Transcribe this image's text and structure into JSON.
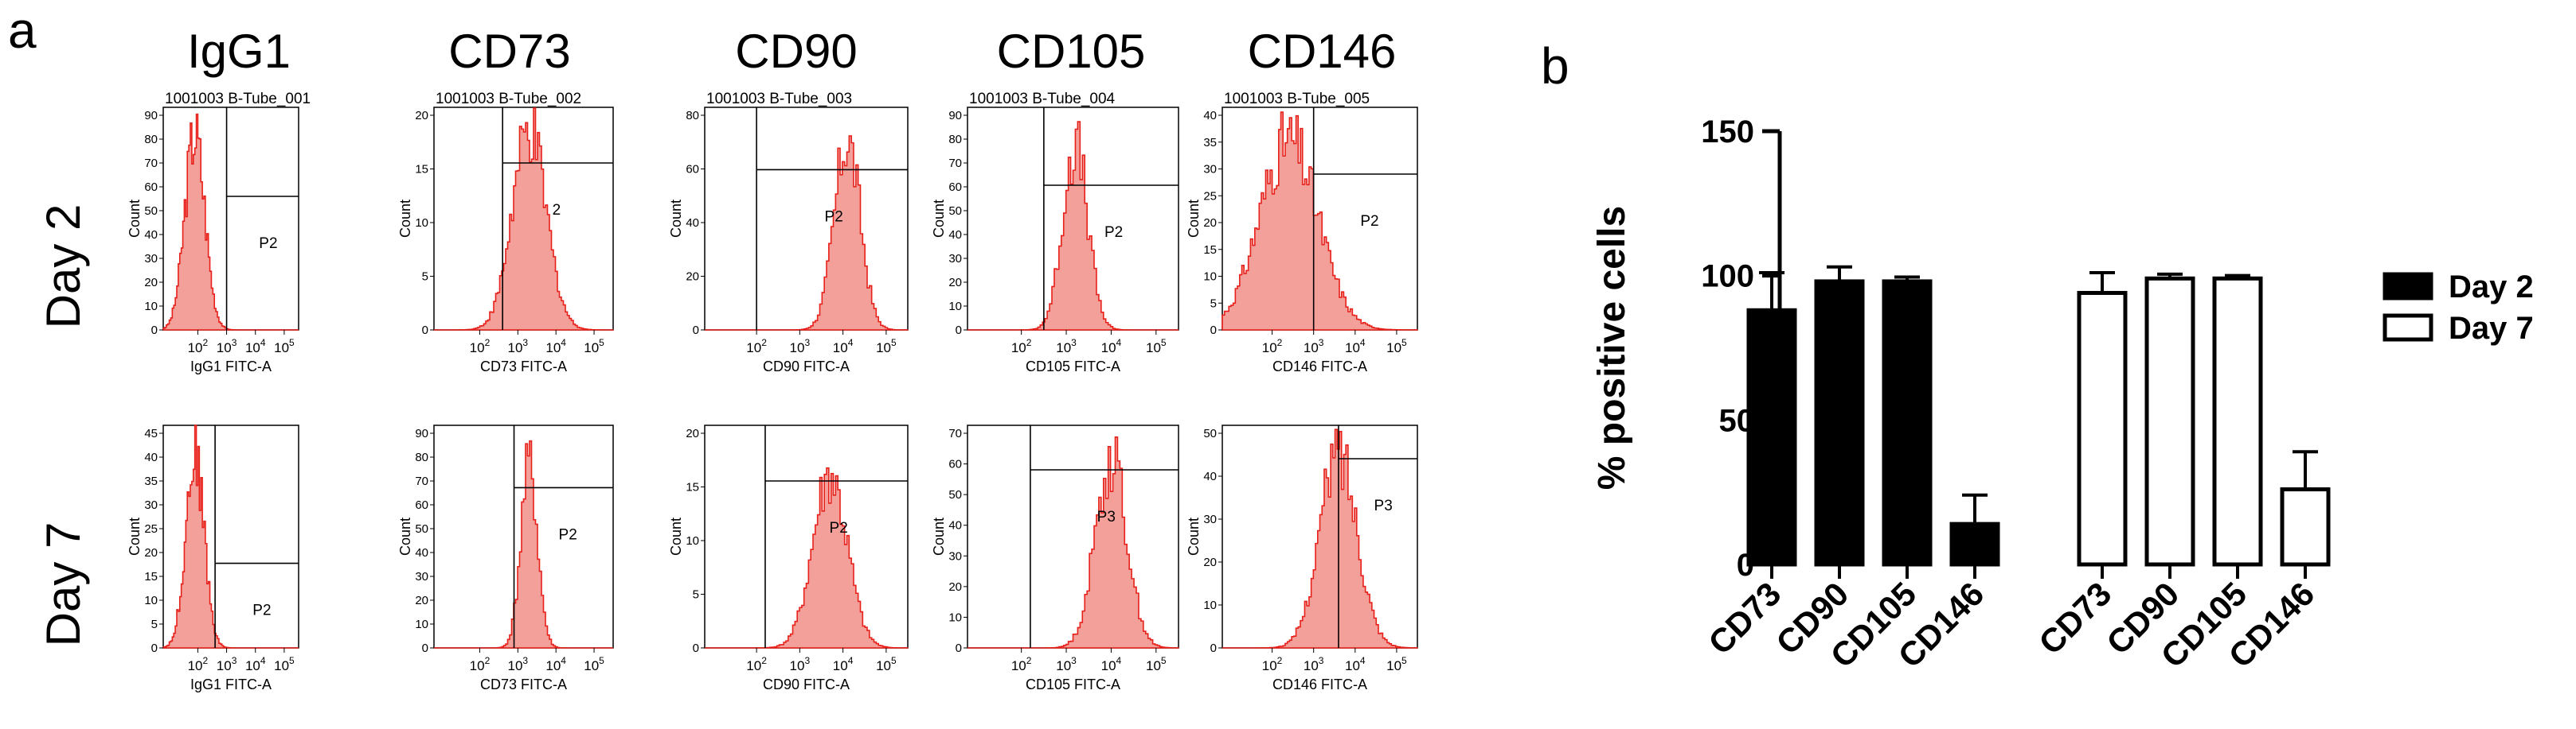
{
  "panel_a": {
    "label": "a",
    "columns": [
      "IgG1",
      "CD73",
      "CD90",
      "CD105",
      "CD146"
    ],
    "rows": [
      "Day 2",
      "Day 7"
    ],
    "histograms": [
      [
        {
          "title": "1001003 B-Tube_001",
          "gate": "P2",
          "xlabel": "IgG1 FITC-A",
          "ylabel": "Count",
          "yticks": [
            "0",
            "10",
            "20",
            "30",
            "40",
            "50",
            "60",
            "70",
            "80",
            "90"
          ],
          "peak_log": 1.9,
          "width_log": 0.35,
          "peak_frac": 0.95,
          "gate_log": 3.0,
          "gate_level": 0.6
        },
        {
          "title": "1001003 B-Tube_002",
          "gate": "2",
          "xlabel": "CD73 FITC-A",
          "ylabel": "Count",
          "yticks": [
            "0",
            "5",
            "10",
            "15",
            "20"
          ],
          "peak_log": 3.3,
          "width_log": 0.45,
          "peak_frac": 0.95,
          "gate_log": 2.6,
          "gate_level": 0.75
        },
        {
          "title": "1001003 B-Tube_003",
          "gate": "P2",
          "xlabel": "CD90 FITC-A",
          "ylabel": "Count",
          "yticks": [
            "0",
            "20",
            "40",
            "60",
            "80"
          ],
          "peak_log": 4.1,
          "width_log": 0.3,
          "peak_frac": 0.92,
          "gate_log": 2.0,
          "gate_level": 0.72
        },
        {
          "title": "1001003 B-Tube_004",
          "gate": "P2",
          "xlabel": "CD105 FITC-A",
          "ylabel": "Count",
          "yticks": [
            "0",
            "10",
            "20",
            "30",
            "40",
            "50",
            "60",
            "70",
            "80",
            "90"
          ],
          "peak_log": 3.2,
          "width_log": 0.28,
          "peak_frac": 0.9,
          "gate_log": 2.5,
          "gate_level": 0.65
        },
        {
          "title": "1001003 B-Tube_005",
          "gate": "P2",
          "xlabel": "CD146 FITC-A",
          "ylabel": "Count",
          "yticks": [
            "0",
            "5",
            "10",
            "15",
            "20",
            "25",
            "30",
            "35",
            "40"
          ],
          "peak_log": 2.4,
          "width_log": 0.7,
          "peak_frac": 0.92,
          "gate_log": 3.0,
          "gate_level": 0.7
        }
      ],
      [
        {
          "title": "",
          "gate": "P2",
          "xlabel": "IgG1 FITC-A",
          "ylabel": "Count",
          "yticks": [
            "0",
            "5",
            "10",
            "15",
            "20",
            "25",
            "30",
            "35",
            "40",
            "45"
          ],
          "peak_log": 1.9,
          "width_log": 0.32,
          "peak_frac": 0.95,
          "gate_log": 2.6,
          "gate_level": 0.38
        },
        {
          "title": "",
          "gate": "P2",
          "xlabel": "CD73 FITC-A",
          "ylabel": "Count",
          "yticks": [
            "0",
            "10",
            "20",
            "30",
            "40",
            "50",
            "60",
            "70",
            "80",
            "90"
          ],
          "peak_log": 3.3,
          "width_log": 0.22,
          "peak_frac": 0.88,
          "gate_log": 2.9,
          "gate_level": 0.72
        },
        {
          "title": "",
          "gate": "P2",
          "xlabel": "CD90 FITC-A",
          "ylabel": "Count",
          "yticks": [
            "0",
            "5",
            "10",
            "15",
            "20"
          ],
          "peak_log": 3.7,
          "width_log": 0.4,
          "peak_frac": 0.85,
          "gate_log": 2.2,
          "gate_level": 0.75
        },
        {
          "title": "",
          "gate": "P3",
          "xlabel": "CD105 FITC-A",
          "ylabel": "Count",
          "yticks": [
            "0",
            "10",
            "20",
            "30",
            "40",
            "50",
            "60",
            "70"
          ],
          "peak_log": 4.0,
          "width_log": 0.35,
          "peak_frac": 0.92,
          "gate_log": 2.2,
          "gate_level": 0.8
        },
        {
          "title": "",
          "gate": "P3",
          "xlabel": "CD146 FITC-A",
          "ylabel": "Count",
          "yticks": [
            "0",
            "10",
            "20",
            "30",
            "40",
            "50"
          ],
          "peak_log": 3.6,
          "width_log": 0.45,
          "peak_frac": 0.95,
          "gate_log": 3.6,
          "gate_level": 0.85
        }
      ]
    ]
  },
  "chart_data": {
    "type": "bar",
    "panel_label": "b",
    "title": "",
    "xlabel": "",
    "ylabel": "% positive cells",
    "ylim": [
      0,
      150
    ],
    "yticks": [
      0,
      50,
      100,
      150
    ],
    "grid": false,
    "categories": [
      "CD73",
      "CD90",
      "CD105",
      "CD146"
    ],
    "series": [
      {
        "name": "Day 2",
        "fill": "#000000",
        "values": [
          88,
          98,
          98,
          14
        ],
        "errors": [
          13,
          5,
          1.5,
          10
        ]
      },
      {
        "name": "Day 7",
        "fill": "#ffffff",
        "values": [
          94,
          99,
          99,
          26
        ],
        "errors": [
          7,
          1.5,
          1,
          13
        ]
      }
    ],
    "legend": {
      "position": "right",
      "entries": [
        "Day 2",
        "Day 7"
      ]
    }
  }
}
